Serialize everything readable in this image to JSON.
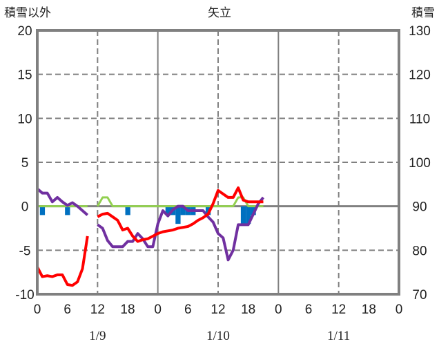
{
  "chart_data": {
    "type": "line",
    "title": "矢立",
    "left_label": "積雪以外",
    "right_label": "積雪",
    "ylim": [
      -10,
      20
    ],
    "yticks": [
      "20",
      "15",
      "10",
      "5",
      "0",
      "-5",
      "-10"
    ],
    "y2lim": [
      70,
      130
    ],
    "y2ticks": [
      "130",
      "120",
      "110",
      "100",
      "90",
      "80",
      "70"
    ],
    "xlim_hours": [
      0,
      72
    ],
    "xticks": [
      "0",
      "6",
      "12",
      "18",
      "0",
      "6",
      "12",
      "18",
      "0",
      "6",
      "12",
      "18",
      "0"
    ],
    "dates": [
      "1/9",
      "1/10",
      "1/11"
    ],
    "series": [
      {
        "name": "red",
        "color": "#ff0000",
        "segments": [
          [
            [
              0,
              -6.9
            ],
            [
              1,
              -8.0
            ],
            [
              2,
              -7.9
            ],
            [
              3,
              -8.0
            ],
            [
              4,
              -7.8
            ],
            [
              5,
              -7.8
            ],
            [
              6,
              -8.9
            ],
            [
              7,
              -9.0
            ],
            [
              8,
              -8.6
            ],
            [
              9,
              -7.1
            ],
            [
              10,
              -3.4
            ]
          ],
          [
            [
              12,
              -1.2
            ],
            [
              13,
              -0.9
            ],
            [
              14,
              -0.8
            ],
            [
              15,
              -1.2
            ],
            [
              16,
              -1.6
            ],
            [
              17,
              -2.7
            ],
            [
              18,
              -2.5
            ],
            [
              19,
              -3.4
            ],
            [
              20,
              -4.0
            ],
            [
              21,
              -3.8
            ],
            [
              22,
              -3.7
            ],
            [
              23,
              -3.4
            ],
            [
              24,
              -3.1
            ],
            [
              25,
              -2.9
            ],
            [
              26,
              -2.8
            ],
            [
              27,
              -2.7
            ],
            [
              28,
              -2.5
            ],
            [
              29,
              -2.4
            ],
            [
              30,
              -2.3
            ],
            [
              31,
              -2.0
            ],
            [
              32,
              -1.6
            ],
            [
              33,
              -1.3
            ],
            [
              34,
              -0.9
            ],
            [
              35,
              0.3
            ],
            [
              36,
              1.8
            ],
            [
              37,
              1.4
            ],
            [
              38,
              1.0
            ],
            [
              39,
              1.0
            ],
            [
              40,
              2.1
            ],
            [
              41,
              0.7
            ],
            [
              42,
              0.5
            ],
            [
              43,
              0.5
            ],
            [
              44,
              0.5
            ],
            [
              45,
              0.5
            ]
          ]
        ]
      },
      {
        "name": "purple",
        "color": "#7030a0",
        "segments": [
          [
            [
              0,
              2.0
            ],
            [
              1,
              1.5
            ],
            [
              2,
              1.5
            ],
            [
              3,
              0.5
            ],
            [
              4,
              1.0
            ],
            [
              5,
              0.5
            ],
            [
              6,
              0.1
            ],
            [
              7,
              0.4
            ],
            [
              8,
              0.0
            ],
            [
              9,
              -0.5
            ],
            [
              10,
              -1.0
            ]
          ],
          [
            [
              12,
              -2.1
            ],
            [
              13,
              -2.5
            ],
            [
              14,
              -3.9
            ],
            [
              15,
              -4.6
            ],
            [
              16,
              -4.6
            ],
            [
              17,
              -4.6
            ],
            [
              18,
              -4.0
            ],
            [
              19,
              -4.0
            ],
            [
              20,
              -3.1
            ],
            [
              21,
              -3.7
            ],
            [
              22,
              -4.6
            ],
            [
              23,
              -4.6
            ],
            [
              24,
              -2.0
            ],
            [
              25,
              -0.5
            ],
            [
              26,
              -1.1
            ],
            [
              27,
              -0.4
            ],
            [
              28,
              0.0
            ],
            [
              29,
              0.0
            ],
            [
              30,
              -0.5
            ],
            [
              31,
              -0.5
            ],
            [
              32,
              -0.5
            ],
            [
              33,
              -0.5
            ],
            [
              34,
              -1.2
            ],
            [
              35,
              -1.8
            ],
            [
              36,
              -3.1
            ],
            [
              37,
              -3.6
            ],
            [
              38,
              -6.1
            ],
            [
              39,
              -5.0
            ],
            [
              40,
              -2.1
            ],
            [
              41,
              -2.1
            ],
            [
              42,
              -2.1
            ],
            [
              43,
              -0.9
            ],
            [
              44,
              0.3
            ],
            [
              45,
              1.0
            ]
          ]
        ]
      },
      {
        "name": "green",
        "color": "#92d050",
        "segments": [
          [
            [
              0,
              0
            ],
            [
              10,
              0
            ]
          ],
          [
            [
              12,
              0
            ],
            [
              13,
              1.0
            ],
            [
              14,
              1.0
            ],
            [
              15,
              0
            ],
            [
              39,
              0
            ],
            [
              40,
              1.0
            ],
            [
              41,
              1.0
            ],
            [
              42,
              0
            ],
            [
              45,
              0
            ]
          ]
        ]
      }
    ],
    "snow_depth_bars": {
      "color": "#0070c0",
      "axis": "right",
      "points": [
        [
          1,
          88
        ],
        [
          6,
          88
        ],
        [
          18,
          88
        ],
        [
          26,
          88
        ],
        [
          27,
          88
        ],
        [
          28,
          86
        ],
        [
          29,
          88
        ],
        [
          30,
          88
        ],
        [
          31,
          88
        ],
        [
          34,
          88
        ],
        [
          41,
          86
        ],
        [
          42,
          86
        ],
        [
          43,
          88
        ]
      ]
    }
  }
}
